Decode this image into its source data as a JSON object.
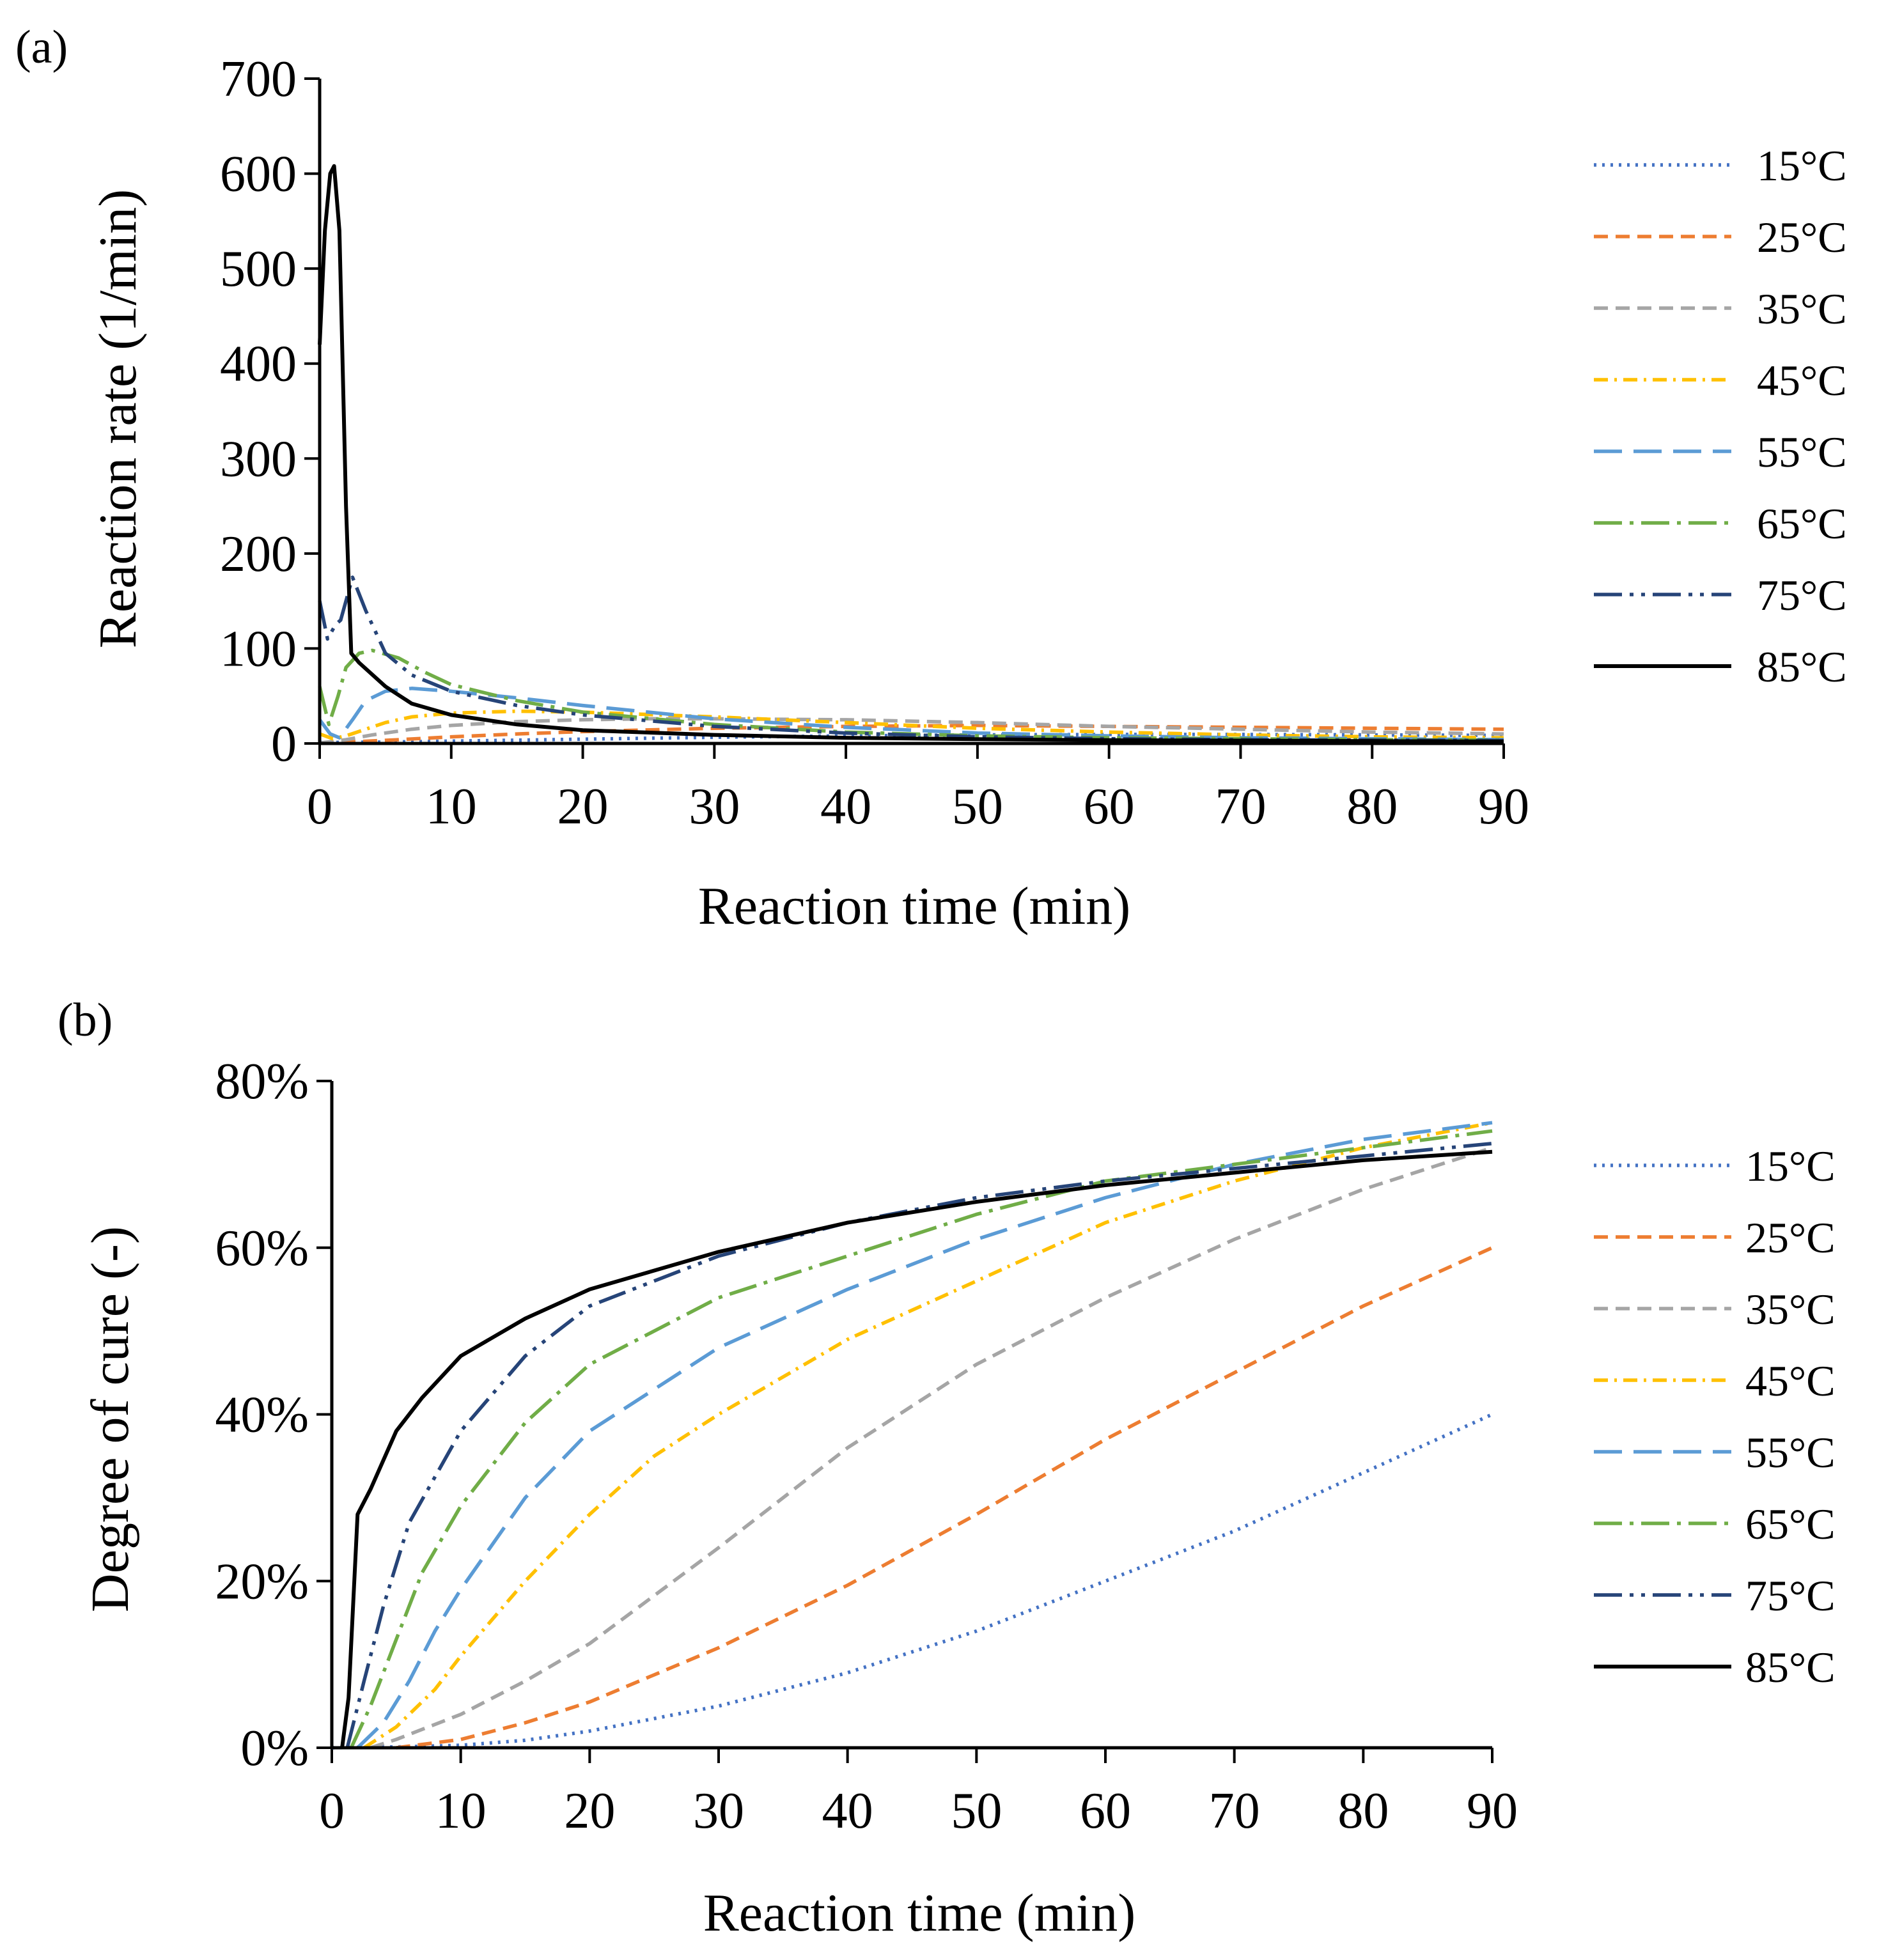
{
  "chart_data": [
    {
      "panel_label": "(a)",
      "type": "line",
      "xlabel": "Reaction time (min)",
      "ylabel": "Reaction rate (1/min)",
      "xlim": [
        0,
        90
      ],
      "ylim": [
        0,
        700
      ],
      "x_ticks": [
        0,
        10,
        20,
        30,
        40,
        50,
        60,
        70,
        80,
        90
      ],
      "y_ticks": [
        0,
        100,
        200,
        300,
        400,
        500,
        600,
        700
      ],
      "y_tick_labels": [
        "0",
        "100",
        "200",
        "300",
        "400",
        "500",
        "600",
        "700"
      ],
      "grid": false,
      "legend_position": "right",
      "series": [
        {
          "name": "15°C",
          "color": "#4472C4",
          "style": "dotted",
          "points": [
            [
              0,
              1
            ],
            [
              5,
              1.5
            ],
            [
              10,
              2.5
            ],
            [
              20,
              4.5
            ],
            [
              30,
              6.5
            ],
            [
              40,
              8
            ],
            [
              50,
              9
            ],
            [
              60,
              9.5
            ],
            [
              70,
              9.5
            ],
            [
              80,
              9
            ],
            [
              90,
              8.5
            ]
          ]
        },
        {
          "name": "25°C",
          "color": "#ED7D31",
          "style": "dash",
          "points": [
            [
              0,
              0.5
            ],
            [
              3,
              2
            ],
            [
              6,
              4
            ],
            [
              10,
              7
            ],
            [
              15,
              10
            ],
            [
              20,
              12.5
            ],
            [
              30,
              16
            ],
            [
              40,
              18
            ],
            [
              50,
              19
            ],
            [
              60,
              18
            ],
            [
              70,
              17
            ],
            [
              80,
              16
            ],
            [
              90,
              15
            ]
          ]
        },
        {
          "name": "35°C",
          "color": "#A5A5A5",
          "style": "dash",
          "points": [
            [
              0,
              0.5
            ],
            [
              2,
              4
            ],
            [
              4,
              9
            ],
            [
              7,
              15
            ],
            [
              10,
              19
            ],
            [
              15,
              23
            ],
            [
              20,
              25
            ],
            [
              25,
              26
            ],
            [
              30,
              26
            ],
            [
              40,
              25
            ],
            [
              50,
              22
            ],
            [
              60,
              18
            ],
            [
              70,
              15
            ],
            [
              80,
              12
            ],
            [
              90,
              10
            ]
          ]
        },
        {
          "name": "45°C",
          "color": "#FFC000",
          "style": "dashdot",
          "points": [
            [
              0,
              10
            ],
            [
              1,
              5
            ],
            [
              2,
              8
            ],
            [
              3.5,
              15
            ],
            [
              5,
              22
            ],
            [
              7,
              28
            ],
            [
              10,
              32
            ],
            [
              15,
              34
            ],
            [
              20,
              33
            ],
            [
              30,
              28
            ],
            [
              40,
              22
            ],
            [
              50,
              16
            ],
            [
              60,
              12
            ],
            [
              70,
              9
            ],
            [
              80,
              7
            ],
            [
              90,
              6
            ]
          ]
        },
        {
          "name": "55°C",
          "color": "#5B9BD5",
          "style": "longdash",
          "points": [
            [
              0,
              25
            ],
            [
              0.8,
              10
            ],
            [
              1.5,
              6
            ],
            [
              2.5,
              25
            ],
            [
              3.5,
              45
            ],
            [
              5,
              55
            ],
            [
              7,
              58
            ],
            [
              10,
              55
            ],
            [
              15,
              48
            ],
            [
              20,
              40
            ],
            [
              30,
              26
            ],
            [
              40,
              17
            ],
            [
              50,
              11
            ],
            [
              60,
              8
            ],
            [
              70,
              6
            ],
            [
              80,
              5
            ],
            [
              90,
              4
            ]
          ]
        },
        {
          "name": "65°C",
          "color": "#70AD47",
          "style": "longdashdot",
          "points": [
            [
              0,
              60
            ],
            [
              0.7,
              20
            ],
            [
              1.4,
              50
            ],
            [
              2,
              80
            ],
            [
              3,
              95
            ],
            [
              4,
              98
            ],
            [
              6,
              90
            ],
            [
              8,
              75
            ],
            [
              10,
              62
            ],
            [
              15,
              45
            ],
            [
              20,
              33
            ],
            [
              30,
              20
            ],
            [
              40,
              12
            ],
            [
              50,
              8
            ],
            [
              60,
              6
            ],
            [
              70,
              5
            ],
            [
              80,
              4
            ],
            [
              90,
              3.5
            ]
          ]
        },
        {
          "name": "75°C",
          "color": "#264478",
          "style": "longdashdotdot",
          "points": [
            [
              0,
              150
            ],
            [
              0.6,
              110
            ],
            [
              1.2,
              125
            ],
            [
              1.6,
              130
            ],
            [
              2.5,
              175
            ],
            [
              3.5,
              140
            ],
            [
              5,
              95
            ],
            [
              7,
              72
            ],
            [
              10,
              55
            ],
            [
              15,
              40
            ],
            [
              20,
              30
            ],
            [
              30,
              18
            ],
            [
              40,
              11
            ],
            [
              50,
              7
            ],
            [
              60,
              5
            ],
            [
              70,
              4
            ],
            [
              80,
              3.5
            ],
            [
              90,
              3
            ]
          ]
        },
        {
          "name": "85°C",
          "color": "#000000",
          "style": "solid",
          "points": [
            [
              0,
              420
            ],
            [
              0.4,
              540
            ],
            [
              0.8,
              600
            ],
            [
              1.1,
              608
            ],
            [
              1.5,
              540
            ],
            [
              2,
              250
            ],
            [
              2.4,
              95
            ],
            [
              3,
              85
            ],
            [
              5,
              60
            ],
            [
              7,
              42
            ],
            [
              10,
              30
            ],
            [
              15,
              20
            ],
            [
              20,
              14
            ],
            [
              30,
              9
            ],
            [
              40,
              6
            ],
            [
              50,
              4.5
            ],
            [
              60,
              3.5
            ],
            [
              70,
              3
            ],
            [
              80,
              2.5
            ],
            [
              90,
              2
            ]
          ]
        }
      ]
    },
    {
      "panel_label": "(b)",
      "type": "line",
      "xlabel": "Reaction time (min)",
      "ylabel": "Degree of cure (-)",
      "xlim": [
        0,
        90
      ],
      "ylim": [
        0,
        80
      ],
      "x_ticks": [
        0,
        10,
        20,
        30,
        40,
        50,
        60,
        70,
        80,
        90
      ],
      "y_ticks": [
        0,
        20,
        40,
        60,
        80
      ],
      "y_tick_labels": [
        "0%",
        "20%",
        "40%",
        "60%",
        "80%"
      ],
      "grid": false,
      "legend_position": "right",
      "series": [
        {
          "name": "15°C",
          "color": "#4472C4",
          "style": "dotted",
          "points": [
            [
              0,
              0
            ],
            [
              5,
              0.1
            ],
            [
              10,
              0.3
            ],
            [
              15,
              0.9
            ],
            [
              20,
              2
            ],
            [
              30,
              5
            ],
            [
              40,
              9
            ],
            [
              50,
              14
            ],
            [
              60,
              20
            ],
            [
              70,
              26
            ],
            [
              80,
              33
            ],
            [
              90,
              40
            ]
          ]
        },
        {
          "name": "25°C",
          "color": "#ED7D31",
          "style": "dash",
          "points": [
            [
              5,
              0
            ],
            [
              10,
              1
            ],
            [
              15,
              3
            ],
            [
              20,
              5.5
            ],
            [
              30,
              12
            ],
            [
              40,
              19.5
            ],
            [
              50,
              28
            ],
            [
              60,
              37
            ],
            [
              70,
              45
            ],
            [
              80,
              53
            ],
            [
              90,
              60
            ]
          ]
        },
        {
          "name": "35°C",
          "color": "#A5A5A5",
          "style": "dash",
          "points": [
            [
              3,
              0
            ],
            [
              5,
              1
            ],
            [
              10,
              4
            ],
            [
              15,
              8
            ],
            [
              20,
              12.5
            ],
            [
              30,
              24
            ],
            [
              40,
              36
            ],
            [
              50,
              46
            ],
            [
              60,
              54
            ],
            [
              70,
              61
            ],
            [
              80,
              67
            ],
            [
              90,
              72
            ]
          ]
        },
        {
          "name": "45°C",
          "color": "#FFC000",
          "style": "dashdot",
          "points": [
            [
              2.5,
              0
            ],
            [
              5,
              2.5
            ],
            [
              8,
              7
            ],
            [
              10,
              11
            ],
            [
              15,
              20
            ],
            [
              20,
              28
            ],
            [
              25,
              35
            ],
            [
              30,
              40
            ],
            [
              40,
              49
            ],
            [
              50,
              56
            ],
            [
              60,
              63
            ],
            [
              70,
              68
            ],
            [
              80,
              72
            ],
            [
              90,
              75
            ]
          ]
        },
        {
          "name": "55°C",
          "color": "#5B9BD5",
          "style": "longdash",
          "points": [
            [
              2,
              0
            ],
            [
              4,
              3
            ],
            [
              6,
              8
            ],
            [
              8,
              14
            ],
            [
              10,
              19
            ],
            [
              15,
              30
            ],
            [
              20,
              38
            ],
            [
              30,
              48
            ],
            [
              40,
              55
            ],
            [
              50,
              61
            ],
            [
              60,
              66
            ],
            [
              70,
              70
            ],
            [
              80,
              73
            ],
            [
              90,
              75
            ]
          ]
        },
        {
          "name": "65°C",
          "color": "#70AD47",
          "style": "longdashdot",
          "points": [
            [
              1.5,
              0
            ],
            [
              3,
              5
            ],
            [
              5,
              13
            ],
            [
              7,
              21
            ],
            [
              10,
              29
            ],
            [
              15,
              39
            ],
            [
              20,
              46
            ],
            [
              30,
              54
            ],
            [
              40,
              59
            ],
            [
              50,
              64
            ],
            [
              60,
              68
            ],
            [
              70,
              70
            ],
            [
              80,
              72
            ],
            [
              90,
              74
            ]
          ]
        },
        {
          "name": "75°C",
          "color": "#264478",
          "style": "longdashdotdot",
          "points": [
            [
              1.2,
              0
            ],
            [
              2.5,
              8
            ],
            [
              4,
              17
            ],
            [
              6,
              27
            ],
            [
              10,
              38
            ],
            [
              15,
              47
            ],
            [
              20,
              53
            ],
            [
              30,
              59
            ],
            [
              40,
              63
            ],
            [
              50,
              66
            ],
            [
              60,
              68
            ],
            [
              70,
              69.5
            ],
            [
              80,
              71
            ],
            [
              90,
              72.5
            ]
          ]
        },
        {
          "name": "85°C",
          "color": "#000000",
          "style": "solid",
          "points": [
            [
              0.8,
              0
            ],
            [
              1.3,
              6
            ],
            [
              2,
              28
            ],
            [
              3,
              31
            ],
            [
              5,
              38
            ],
            [
              7,
              42
            ],
            [
              10,
              47
            ],
            [
              15,
              51.5
            ],
            [
              20,
              55
            ],
            [
              30,
              59.5
            ],
            [
              40,
              63
            ],
            [
              50,
              65.5
            ],
            [
              60,
              67.5
            ],
            [
              70,
              69
            ],
            [
              80,
              70.5
            ],
            [
              90,
              71.5
            ]
          ]
        }
      ]
    }
  ]
}
